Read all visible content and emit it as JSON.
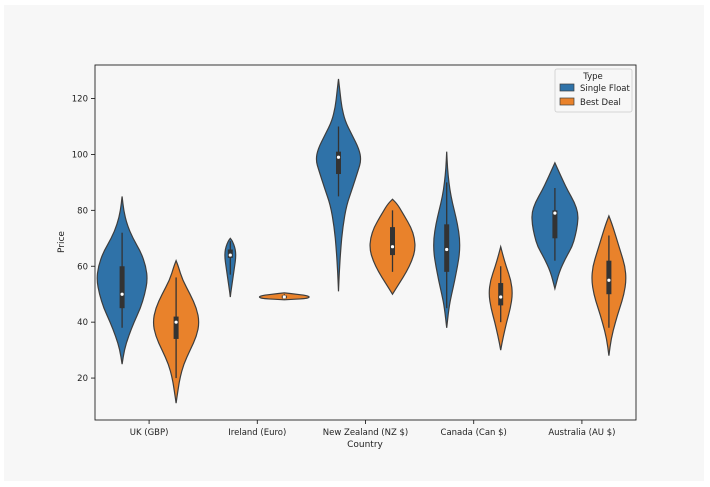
{
  "chart_data": {
    "type": "violin",
    "title": "",
    "xlabel": "Country",
    "ylabel": "Price",
    "ylim": [
      5,
      132
    ],
    "yticks": [
      20,
      40,
      60,
      80,
      100,
      120
    ],
    "categories": [
      "UK (GBP)",
      "Ireland (Euro)",
      "New Zealand (NZ $)",
      "Canada (Can $)",
      "Australia (AU $)"
    ],
    "legend": {
      "title": "Type",
      "position": "top-right",
      "entries": [
        "Single Float",
        "Best Deal"
      ]
    },
    "colors": {
      "Single Float": "#2f72a8",
      "Best Deal": "#e9822b",
      "outline": "#3d3d3d"
    },
    "grid": false,
    "series": [
      {
        "name": "Single Float",
        "violins": [
          {
            "profile": [
              [
                25,
                0
              ],
              [
                30,
                0.04
              ],
              [
                35,
                0.12
              ],
              [
                40,
                0.22
              ],
              [
                45,
                0.34
              ],
              [
                50,
                0.42
              ],
              [
                55,
                0.47
              ],
              [
                60,
                0.44
              ],
              [
                65,
                0.35
              ],
              [
                70,
                0.2
              ],
              [
                75,
                0.09
              ],
              [
                80,
                0.03
              ],
              [
                85,
                0
              ]
            ],
            "median": 50,
            "q1": 45,
            "q3": 60,
            "lower": 38,
            "upper": 72
          },
          {
            "profile": [
              [
                49,
                0
              ],
              [
                52,
                0.02
              ],
              [
                56,
                0.05
              ],
              [
                60,
                0.08
              ],
              [
                63,
                0.1
              ],
              [
                65,
                0.1
              ],
              [
                67,
                0.08
              ],
              [
                69,
                0.04
              ],
              [
                70,
                0
              ]
            ],
            "median": 64,
            "q1": 63,
            "q3": 66,
            "lower": 57,
            "upper": 69
          },
          {
            "profile": [
              [
                51,
                0
              ],
              [
                58,
                0.015
              ],
              [
                66,
                0.04
              ],
              [
                74,
                0.08
              ],
              [
                82,
                0.15
              ],
              [
                88,
                0.26
              ],
              [
                94,
                0.36
              ],
              [
                98,
                0.42
              ],
              [
                102,
                0.38
              ],
              [
                107,
                0.25
              ],
              [
                112,
                0.12
              ],
              [
                117,
                0.06
              ],
              [
                122,
                0.03
              ],
              [
                127,
                0
              ]
            ],
            "median": 99,
            "q1": 93,
            "q3": 101,
            "lower": 85,
            "upper": 110
          },
          {
            "profile": [
              [
                38,
                0
              ],
              [
                45,
                0.04
              ],
              [
                50,
                0.09
              ],
              [
                55,
                0.15
              ],
              [
                60,
                0.2
              ],
              [
                65,
                0.24
              ],
              [
                70,
                0.24
              ],
              [
                75,
                0.2
              ],
              [
                80,
                0.14
              ],
              [
                85,
                0.08
              ],
              [
                90,
                0.04
              ],
              [
                95,
                0.015
              ],
              [
                101,
                0
              ]
            ],
            "median": 66,
            "q1": 58,
            "q3": 75,
            "lower": 45,
            "upper": 90
          },
          {
            "profile": [
              [
                52,
                0
              ],
              [
                58,
                0.08
              ],
              [
                63,
                0.2
              ],
              [
                67,
                0.32
              ],
              [
                71,
                0.38
              ],
              [
                75,
                0.42
              ],
              [
                79,
                0.43
              ],
              [
                83,
                0.36
              ],
              [
                87,
                0.24
              ],
              [
                91,
                0.14
              ],
              [
                94,
                0.07
              ],
              [
                97,
                0
              ]
            ],
            "median": 79,
            "q1": 70,
            "q3": 80,
            "lower": 62,
            "upper": 88
          }
        ]
      },
      {
        "name": "Best Deal",
        "violins": [
          {
            "profile": [
              [
                11,
                0
              ],
              [
                15,
                0.03
              ],
              [
                20,
                0.07
              ],
              [
                25,
                0.14
              ],
              [
                30,
                0.26
              ],
              [
                35,
                0.38
              ],
              [
                40,
                0.43
              ],
              [
                45,
                0.38
              ],
              [
                50,
                0.26
              ],
              [
                55,
                0.12
              ],
              [
                60,
                0.04
              ],
              [
                62,
                0
              ]
            ],
            "median": 40,
            "q1": 34,
            "q3": 42,
            "lower": 20,
            "upper": 56
          },
          {
            "profile": [
              [
                48,
                0
              ],
              [
                48.4,
                0.4
              ],
              [
                49,
                0.48
              ],
              [
                49.6,
                0.4
              ],
              [
                50,
                0.22
              ],
              [
                50.5,
                0
              ]
            ],
            "median": 49,
            "q1": 48.5,
            "q3": 49.5,
            "lower": 48.2,
            "upper": 50
          },
          {
            "profile": [
              [
                50,
                0
              ],
              [
                54,
                0.13
              ],
              [
                58,
                0.26
              ],
              [
                62,
                0.36
              ],
              [
                66,
                0.42
              ],
              [
                70,
                0.41
              ],
              [
                74,
                0.34
              ],
              [
                78,
                0.22
              ],
              [
                82,
                0.1
              ],
              [
                84,
                0
              ]
            ],
            "median": 67,
            "q1": 64,
            "q3": 74,
            "lower": 58,
            "upper": 80
          },
          {
            "profile": [
              [
                30,
                0
              ],
              [
                35,
                0.05
              ],
              [
                40,
                0.11
              ],
              [
                45,
                0.18
              ],
              [
                50,
                0.22
              ],
              [
                55,
                0.19
              ],
              [
                60,
                0.1
              ],
              [
                64,
                0.04
              ],
              [
                67,
                0
              ]
            ],
            "median": 49,
            "q1": 46,
            "q3": 54,
            "lower": 40,
            "upper": 60
          },
          {
            "profile": [
              [
                28,
                0
              ],
              [
                34,
                0.04
              ],
              [
                40,
                0.12
              ],
              [
                45,
                0.2
              ],
              [
                50,
                0.28
              ],
              [
                55,
                0.32
              ],
              [
                60,
                0.3
              ],
              [
                65,
                0.22
              ],
              [
                70,
                0.14
              ],
              [
                75,
                0.06
              ],
              [
                78,
                0
              ]
            ],
            "median": 55,
            "q1": 50,
            "q3": 62,
            "lower": 38,
            "upper": 71
          }
        ]
      }
    ]
  }
}
